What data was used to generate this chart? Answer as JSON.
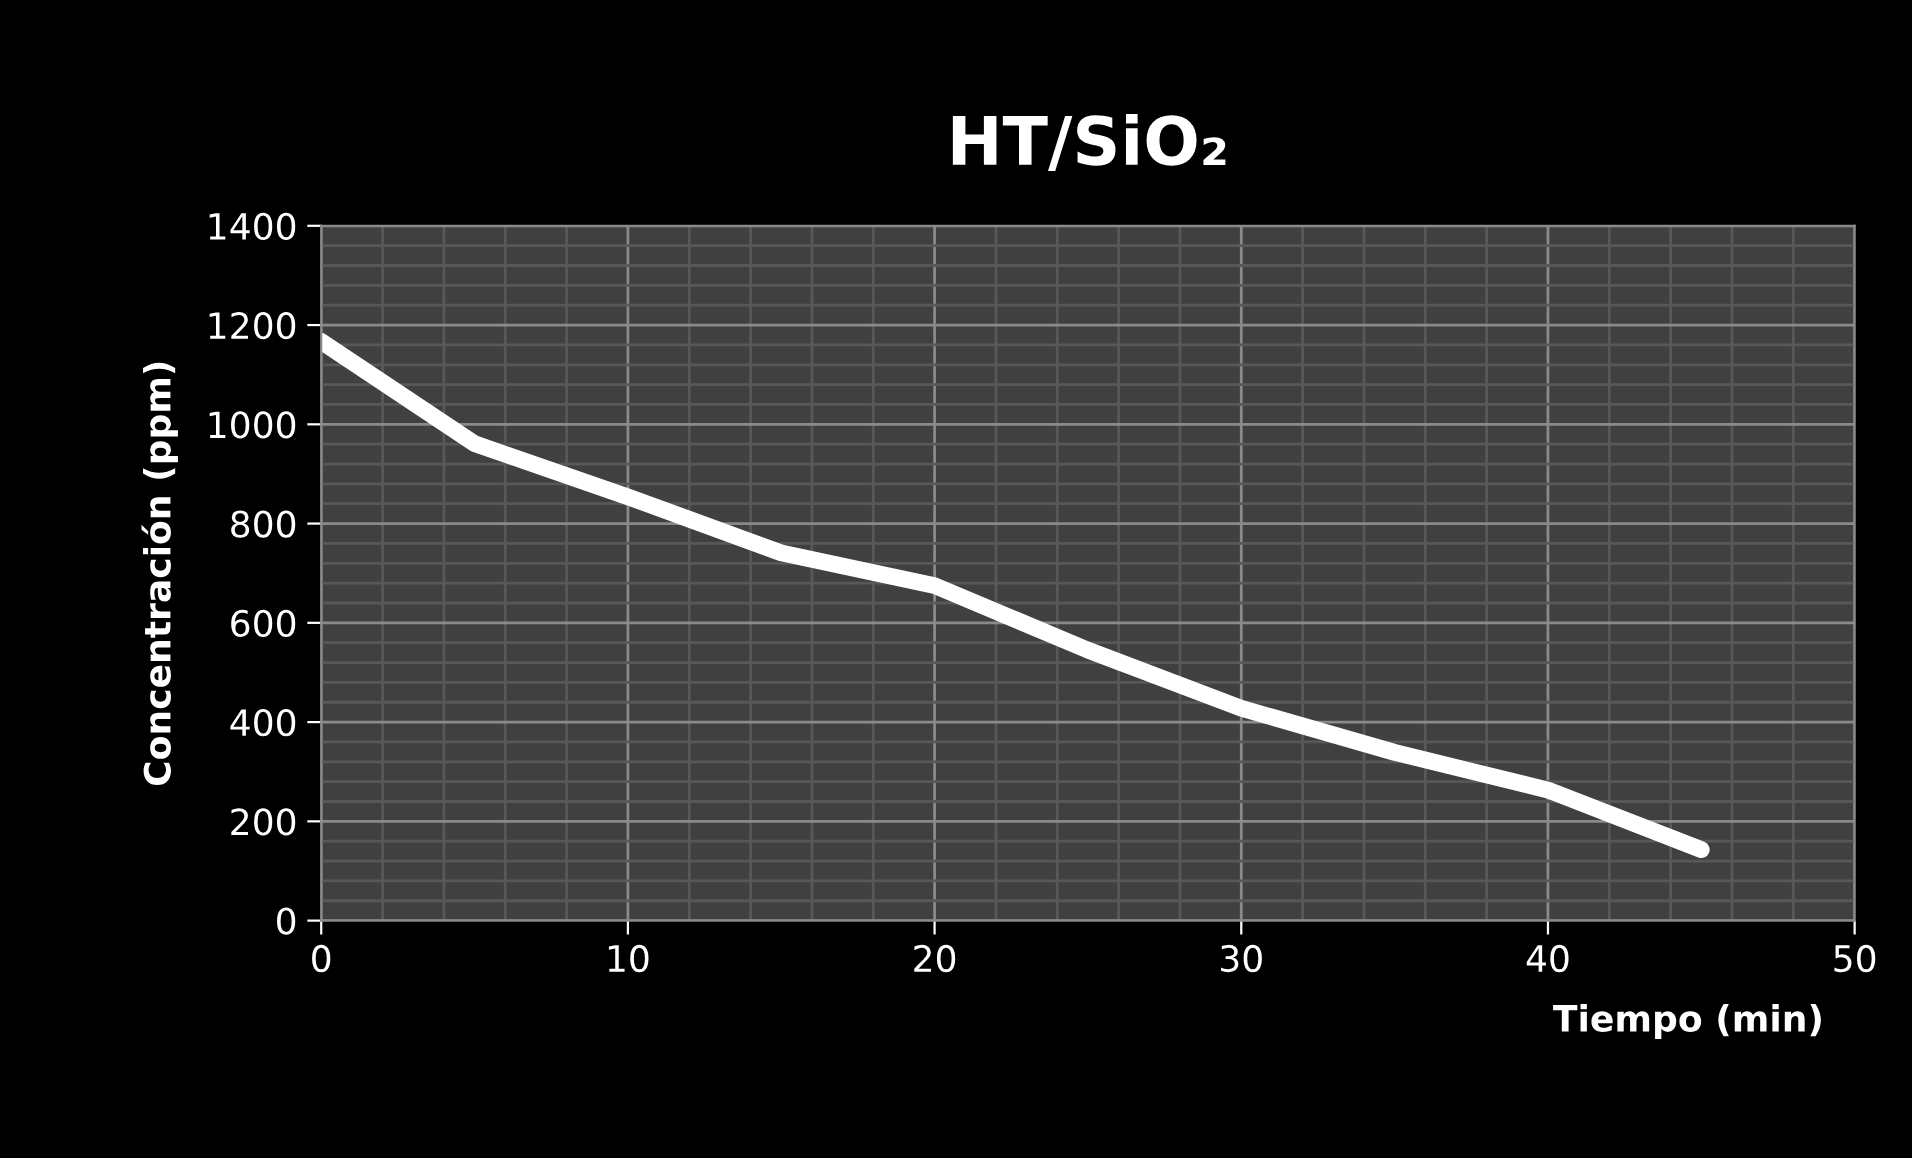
{
  "chart_data": {
    "type": "line",
    "title": "HT/SiO₂",
    "xlabel": "Tiempo (min)",
    "ylabel": "Concentración (ppm)",
    "x": [
      0,
      5,
      10,
      15,
      20,
      25,
      30,
      35,
      40,
      45
    ],
    "series": [
      {
        "color": "#ffffff",
        "values": [
          1167,
          961,
          854,
          741,
          675,
          545,
          428,
          339,
          263,
          143
        ]
      }
    ],
    "xlim": [
      0,
      50
    ],
    "xticks": [
      0,
      10,
      20,
      30,
      40,
      50
    ],
    "ylim": [
      0,
      1400
    ],
    "yticks": [
      0,
      200,
      400,
      600,
      800,
      1000,
      1200,
      1400
    ],
    "grid": true,
    "marker": "none",
    "line_style": "solid"
  }
}
